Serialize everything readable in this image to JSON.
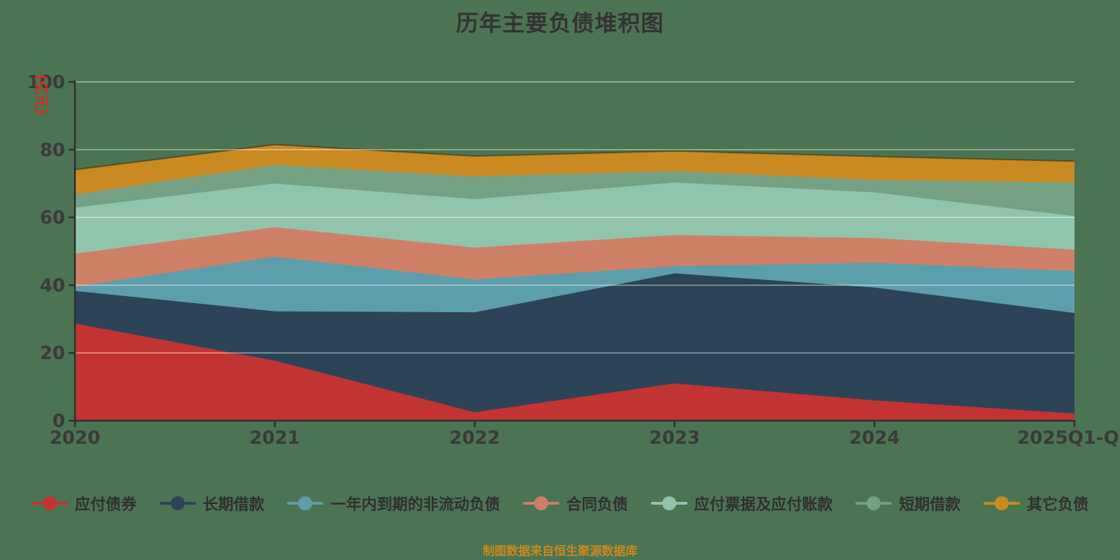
{
  "title": "历年主要负债堆积图",
  "caption": "制图数据来自恒生聚源数据库",
  "colors": {
    "background": "#4b7453",
    "title_text": "#333333",
    "axis_text": "#3a3a3a",
    "axis_line": "#2f2f2f",
    "y_axis_label": "#d03020",
    "caption_text": "#c8891e",
    "gridline": "rgba(255,255,255,0.55)"
  },
  "chart_data": {
    "type": "area",
    "stacked": true,
    "title": "历年主要负债堆积图",
    "xlabel": "",
    "ylabel": "(亿元)",
    "ylim": [
      0,
      100
    ],
    "yticks": [
      0,
      20,
      40,
      60,
      80,
      100
    ],
    "grid": true,
    "legend_position": "bottom",
    "x": [
      "2020",
      "2021",
      "2022",
      "2023",
      "2024",
      "2025Q1-Q3"
    ],
    "series": [
      {
        "name": "应付债券",
        "color": "#c23431",
        "values": [
          28.7,
          17.7,
          2.5,
          11.0,
          6.0,
          2.1
        ]
      },
      {
        "name": "长期借款",
        "color": "#2d4357",
        "values": [
          9.6,
          14.6,
          29.5,
          32.5,
          33.3,
          29.7
        ]
      },
      {
        "name": "一年内到期的非流动负债",
        "color": "#5d9eac",
        "values": [
          1.3,
          16.1,
          9.7,
          2.1,
          7.3,
          12.4
        ]
      },
      {
        "name": "合同负债",
        "color": "#ce8066",
        "values": [
          9.7,
          8.7,
          9.4,
          9.2,
          7.3,
          6.3
        ]
      },
      {
        "name": "应付票据及应付账款",
        "color": "#90c5ac",
        "values": [
          13.6,
          12.9,
          14.3,
          15.5,
          13.5,
          9.9
        ]
      },
      {
        "name": "短期借款",
        "color": "#74a083",
        "values": [
          3.9,
          5.5,
          6.7,
          3.4,
          3.6,
          9.9
        ]
      },
      {
        "name": "其它负债",
        "color": "#c98a21",
        "values": [
          7.3,
          6.0,
          6.0,
          5.9,
          7.0,
          6.3
        ]
      }
    ],
    "stack_totals": [
      74.1,
      81.5,
      78.1,
      79.6,
      78.0,
      76.6
    ]
  }
}
